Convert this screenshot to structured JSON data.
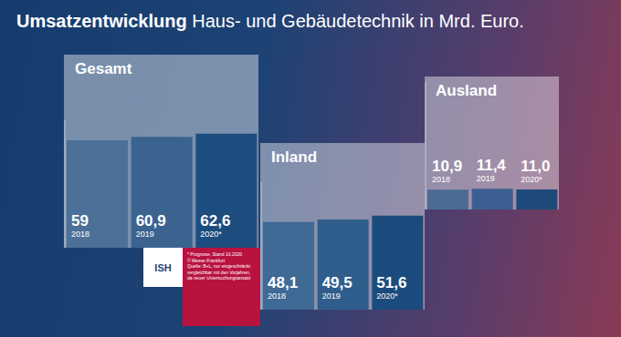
{
  "title": {
    "bold": "Umsatzentwicklung",
    "rest": "Haus- und Gebäudetechnik in Mrd. Euro."
  },
  "logo": "ISH",
  "footnote": [
    "* Prognose, Stand 10.2020",
    "© Messe Frankfurt",
    "Quelle: B+L, nur eingeschränkt",
    "vergleichbar mit den Vorjahren,",
    "da neuer Untersuchungsansatz"
  ],
  "chart_data": [
    {
      "type": "bar",
      "title": "Gesamt",
      "categories": [
        "2018",
        "2019",
        "2020*"
      ],
      "values": [
        59,
        60.9,
        62.6
      ],
      "value_labels": [
        "59",
        "60,9",
        "62,6"
      ],
      "data_labels": true,
      "colors": [
        "#4d7099",
        "#3a6390",
        "#1d4d7e"
      ],
      "ylim": [
        0,
        70
      ],
      "tick_labels": false
    },
    {
      "type": "bar",
      "title": "Inland",
      "categories": [
        "2018",
        "2019",
        "2020*"
      ],
      "values": [
        48.1,
        49.5,
        51.6
      ],
      "value_labels": [
        "48,1",
        "49,5",
        "51,6"
      ],
      "data_labels": true,
      "colors": [
        "#3f6a96",
        "#2f5e8d",
        "#1b4b7c"
      ],
      "ylim": [
        0,
        70
      ],
      "tick_labels": false
    },
    {
      "type": "bar",
      "title": "Ausland",
      "categories": [
        "2018",
        "2019",
        "2020*"
      ],
      "values": [
        10.9,
        11.4,
        11.0
      ],
      "value_labels": [
        "10,9",
        "11,4",
        "11,0"
      ],
      "data_labels": true,
      "colors": [
        "#4b6b95",
        "#3b5f90",
        "#1f4a7c"
      ],
      "ylim": [
        0,
        70
      ],
      "tick_labels": false
    }
  ]
}
